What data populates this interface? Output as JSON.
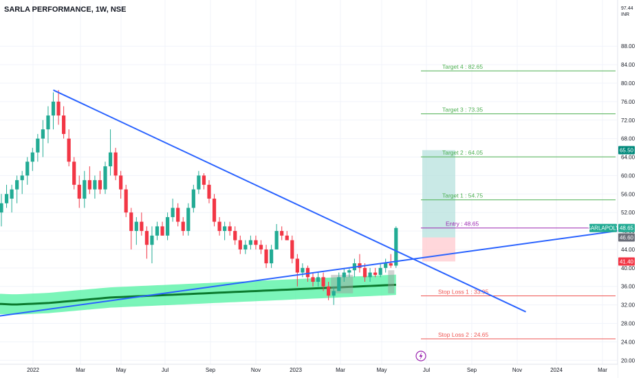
{
  "title": "SARLA PERFORMANCE, 1W, NSE",
  "currency_top": "97.44",
  "currency": "INR",
  "colors": {
    "up": "#22ab94",
    "down": "#f23645",
    "trendline": "#2962ff",
    "ma": "#0b7a2e",
    "band": "#4ff2a1",
    "target": "#4caf50",
    "stop": "#ef5350",
    "entry": "#9c27b0",
    "profit_zone": "#b2dfdb",
    "loss_zone": "#ffcdd2"
  },
  "chart_data": {
    "type": "candlestick",
    "symbol": "SARLA PERFORMANCE",
    "interval": "1W",
    "exchange": "NSE",
    "ylim": [
      19,
      98
    ],
    "y_ticks": [
      "20.00",
      "24.00",
      "28.00",
      "32.00",
      "36.00",
      "40.00",
      "44.00",
      "48.00",
      "52.00",
      "56.00",
      "60.00",
      "64.00",
      "68.00",
      "72.00",
      "76.00",
      "80.00",
      "84.00",
      "88.00"
    ],
    "x_ticks": [
      "2022",
      "Mar",
      "May",
      "Jul",
      "Sep",
      "Nov",
      "2023",
      "Mar",
      "May",
      "Jul",
      "Sep",
      "Nov",
      "2024",
      "Mar"
    ],
    "candles": [
      {
        "o": 52,
        "h": 56,
        "l": 49,
        "c": 54
      },
      {
        "o": 54,
        "h": 58,
        "l": 53,
        "c": 56
      },
      {
        "o": 55,
        "h": 58,
        "l": 52,
        "c": 57
      },
      {
        "o": 57,
        "h": 60,
        "l": 54,
        "c": 59
      },
      {
        "o": 59,
        "h": 61,
        "l": 56,
        "c": 60
      },
      {
        "o": 60,
        "h": 64,
        "l": 58,
        "c": 63
      },
      {
        "o": 63,
        "h": 66,
        "l": 61,
        "c": 65
      },
      {
        "o": 65,
        "h": 69,
        "l": 63,
        "c": 68
      },
      {
        "o": 68,
        "h": 72,
        "l": 64,
        "c": 70
      },
      {
        "o": 70,
        "h": 75,
        "l": 67,
        "c": 73
      },
      {
        "o": 73,
        "h": 78,
        "l": 70,
        "c": 76
      },
      {
        "o": 76,
        "h": 78.5,
        "l": 71,
        "c": 73
      },
      {
        "o": 73,
        "h": 75,
        "l": 68,
        "c": 69
      },
      {
        "o": 68,
        "h": 70,
        "l": 62,
        "c": 63
      },
      {
        "o": 63,
        "h": 64,
        "l": 57,
        "c": 58
      },
      {
        "o": 58,
        "h": 60,
        "l": 53,
        "c": 55
      },
      {
        "o": 55,
        "h": 61,
        "l": 53,
        "c": 59
      },
      {
        "o": 59,
        "h": 62,
        "l": 56,
        "c": 57
      },
      {
        "o": 57,
        "h": 60,
        "l": 55,
        "c": 59
      },
      {
        "o": 59,
        "h": 61,
        "l": 56,
        "c": 57
      },
      {
        "o": 57,
        "h": 63,
        "l": 56,
        "c": 62
      },
      {
        "o": 62,
        "h": 70,
        "l": 60,
        "c": 65
      },
      {
        "o": 65,
        "h": 66,
        "l": 59,
        "c": 60
      },
      {
        "o": 60,
        "h": 61,
        "l": 55,
        "c": 57
      },
      {
        "o": 57,
        "h": 58,
        "l": 51,
        "c": 52
      },
      {
        "o": 52,
        "h": 53,
        "l": 44,
        "c": 48
      },
      {
        "o": 48,
        "h": 51,
        "l": 45,
        "c": 50
      },
      {
        "o": 50,
        "h": 52,
        "l": 47,
        "c": 48
      },
      {
        "o": 48,
        "h": 49,
        "l": 42,
        "c": 45
      },
      {
        "o": 45,
        "h": 49,
        "l": 41,
        "c": 47
      },
      {
        "o": 47,
        "h": 50,
        "l": 46,
        "c": 49
      },
      {
        "o": 49,
        "h": 50,
        "l": 47,
        "c": 47
      },
      {
        "o": 47,
        "h": 52,
        "l": 46,
        "c": 51
      },
      {
        "o": 51,
        "h": 55,
        "l": 50,
        "c": 53
      },
      {
        "o": 53,
        "h": 54,
        "l": 49,
        "c": 50
      },
      {
        "o": 50,
        "h": 51,
        "l": 47,
        "c": 48
      },
      {
        "o": 48,
        "h": 54,
        "l": 47,
        "c": 53
      },
      {
        "o": 53,
        "h": 58,
        "l": 52,
        "c": 57
      },
      {
        "o": 57,
        "h": 61,
        "l": 56,
        "c": 60
      },
      {
        "o": 60,
        "h": 60.5,
        "l": 57,
        "c": 58
      },
      {
        "o": 58,
        "h": 59,
        "l": 54,
        "c": 55
      },
      {
        "o": 55,
        "h": 56,
        "l": 49,
        "c": 50
      },
      {
        "o": 50,
        "h": 51,
        "l": 47,
        "c": 48
      },
      {
        "o": 48,
        "h": 50,
        "l": 46,
        "c": 49
      },
      {
        "o": 49,
        "h": 50,
        "l": 47,
        "c": 48
      },
      {
        "o": 48,
        "h": 49,
        "l": 45,
        "c": 46
      },
      {
        "o": 46,
        "h": 47,
        "l": 43,
        "c": 44
      },
      {
        "o": 44,
        "h": 46,
        "l": 43,
        "c": 45
      },
      {
        "o": 45,
        "h": 47,
        "l": 44,
        "c": 46
      },
      {
        "o": 46,
        "h": 47,
        "l": 44,
        "c": 45
      },
      {
        "o": 45,
        "h": 46,
        "l": 43,
        "c": 44
      },
      {
        "o": 44,
        "h": 45,
        "l": 40,
        "c": 41
      },
      {
        "o": 41,
        "h": 45,
        "l": 40,
        "c": 44
      },
      {
        "o": 44,
        "h": 49.5,
        "l": 44,
        "c": 48
      },
      {
        "o": 48,
        "h": 49,
        "l": 46,
        "c": 47
      },
      {
        "o": 47,
        "h": 48,
        "l": 46,
        "c": 46
      },
      {
        "o": 46,
        "h": 47,
        "l": 41,
        "c": 42
      },
      {
        "o": 42,
        "h": 43,
        "l": 36,
        "c": 39
      },
      {
        "o": 39,
        "h": 41,
        "l": 38,
        "c": 40
      },
      {
        "o": 40,
        "h": 40.5,
        "l": 37,
        "c": 38
      },
      {
        "o": 38,
        "h": 39,
        "l": 36,
        "c": 37
      },
      {
        "o": 37,
        "h": 39,
        "l": 36,
        "c": 38
      },
      {
        "o": 38,
        "h": 39,
        "l": 35,
        "c": 36
      },
      {
        "o": 36,
        "h": 37,
        "l": 33,
        "c": 34
      },
      {
        "o": 34,
        "h": 36,
        "l": 32,
        "c": 35
      },
      {
        "o": 35,
        "h": 39,
        "l": 35,
        "c": 38
      },
      {
        "o": 38,
        "h": 40,
        "l": 37,
        "c": 39
      },
      {
        "o": 39,
        "h": 40,
        "l": 38,
        "c": 39.5
      },
      {
        "o": 39.5,
        "h": 42,
        "l": 38,
        "c": 41
      },
      {
        "o": 41,
        "h": 43,
        "l": 39,
        "c": 40
      },
      {
        "o": 40,
        "h": 41,
        "l": 37,
        "c": 38
      },
      {
        "o": 38,
        "h": 40,
        "l": 37,
        "c": 39
      },
      {
        "o": 39,
        "h": 40,
        "l": 38,
        "c": 38.5
      },
      {
        "o": 38.5,
        "h": 41,
        "l": 38,
        "c": 40
      },
      {
        "o": 40,
        "h": 42,
        "l": 39,
        "c": 41
      },
      {
        "o": 41,
        "h": 43,
        "l": 40,
        "c": 40.5
      },
      {
        "o": 40.5,
        "h": 49,
        "l": 40,
        "c": 48.65
      }
    ],
    "moving_average": [
      32.2,
      32.15,
      32.1,
      32.1,
      32.15,
      32.2,
      32.25,
      32.3,
      32.35,
      32.4,
      32.5,
      32.6,
      32.7,
      32.8,
      32.9,
      33.0,
      33.1,
      33.2,
      33.3,
      33.4,
      33.5,
      33.6,
      33.65,
      33.7,
      33.75,
      33.8,
      33.85,
      33.9,
      33.95,
      34.0,
      34.05,
      34.1,
      34.15,
      34.2,
      34.25,
      34.3,
      34.35,
      34.4,
      34.45,
      34.5,
      34.55,
      34.6,
      34.65,
      34.7,
      34.75,
      34.8,
      34.85,
      34.9,
      34.95,
      35.0,
      35.05,
      35.1,
      35.15,
      35.2,
      35.25,
      35.3,
      35.35,
      35.4,
      35.45,
      35.5,
      35.55,
      35.6,
      35.65,
      35.7,
      35.75,
      35.8,
      35.85,
      35.9,
      35.95,
      36.0,
      36.05,
      36.1,
      36.15,
      36.2,
      36.25,
      36.3,
      36.35
    ],
    "ma_band_halfwidth": 2.2,
    "trendlines": [
      {
        "name": "resistance",
        "from": {
          "bar": 10,
          "price": 78.5
        },
        "to": {
          "bar": 101,
          "price": 30.5
        }
      },
      {
        "name": "support",
        "from": {
          "bar": -1,
          "price": 29.5
        },
        "to": {
          "bar": 125,
          "price": 49.0
        }
      }
    ],
    "levels": [
      {
        "label": "Target 4 : 82.65",
        "price": 82.65,
        "kind": "target"
      },
      {
        "label": "Target 3 : 73.35",
        "price": 73.35,
        "kind": "target"
      },
      {
        "label": "Target 2 : 64.05",
        "price": 64.05,
        "kind": "target"
      },
      {
        "label": "Target 1 : 54.75",
        "price": 54.75,
        "kind": "target"
      },
      {
        "label": "Entry : 48.65",
        "price": 48.65,
        "kind": "entry"
      },
      {
        "label": "Stop Loss 1 : 33.95",
        "price": 33.95,
        "kind": "stop"
      },
      {
        "label": "Stop Loss 2 : 24.65",
        "price": 24.65,
        "kind": "stop"
      }
    ],
    "position": {
      "entry": 46.6,
      "target": 65.5,
      "stop": 41.4
    },
    "price_badges": [
      {
        "text": "65.50",
        "price": 65.5,
        "color": "#00897b"
      },
      {
        "text": "48.65",
        "price": 48.65,
        "color": "#22ab94",
        "ticker": "SARLAPOLY"
      },
      {
        "text": "46.60",
        "price": 46.6,
        "color": "#6a6d78"
      },
      {
        "text": "41.40",
        "price": 41.4,
        "color": "#f23645"
      }
    ]
  }
}
